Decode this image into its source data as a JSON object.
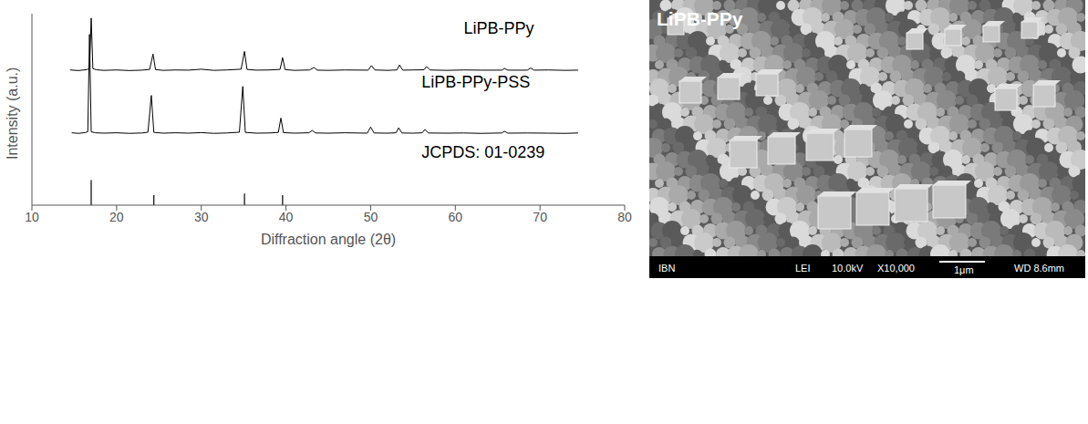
{
  "chart_data": {
    "type": "line",
    "x_label": "Diffraction angle (2θ)",
    "y_label": "Intensity (a.u.)",
    "xlim": [
      10,
      80
    ],
    "xticks": [
      10,
      20,
      30,
      40,
      50,
      60,
      70,
      80
    ],
    "ylim": [
      0,
      100
    ],
    "yticks": [],
    "tick_labels": "x",
    "grid": false,
    "series": [
      {
        "name": "LiPB-PPy",
        "color": "#000000",
        "type": "line",
        "x": [
          14.5,
          15.5,
          16.5,
          16.8,
          17.0,
          17.2,
          17.6,
          18.5,
          20,
          21.5,
          23,
          23.9,
          24.3,
          24.6,
          25.5,
          27,
          28.5,
          30,
          31.5,
          33,
          34.7,
          35.1,
          35.4,
          36.5,
          38,
          39.3,
          39.6,
          39.9,
          41,
          42.8,
          43.3,
          43.7,
          45,
          47,
          49.7,
          50.1,
          50.5,
          52,
          53.1,
          53.4,
          53.8,
          55,
          56.3,
          56.6,
          57,
          59,
          61,
          63,
          65.5,
          65.8,
          66.2,
          68.5,
          68.9,
          69.3,
          71,
          73,
          74.5
        ],
        "values": [
          70.6,
          70.3,
          70.8,
          71.5,
          97.7,
          71.3,
          70.7,
          70.4,
          70.6,
          70.3,
          70.5,
          70.9,
          78.9,
          70.8,
          70.4,
          70.6,
          70.5,
          71.0,
          70.4,
          70.6,
          71.0,
          80.3,
          70.9,
          70.5,
          70.6,
          70.9,
          77.0,
          70.8,
          70.4,
          70.6,
          71.9,
          70.5,
          70.4,
          70.6,
          70.5,
          72.9,
          70.6,
          70.4,
          70.6,
          73.2,
          70.5,
          70.6,
          70.7,
          72.4,
          70.6,
          70.4,
          70.6,
          70.5,
          70.5,
          71.4,
          70.5,
          70.5,
          71.6,
          70.5,
          70.6,
          70.4,
          70.5
        ]
      },
      {
        "name": "LiPB-PPy-PSS",
        "color": "#000000",
        "type": "line",
        "x": [
          14.7,
          15.5,
          16.3,
          16.6,
          16.8,
          17.0,
          17.5,
          18.5,
          20,
          21.5,
          23,
          23.7,
          24.1,
          24.4,
          25.5,
          27,
          28.5,
          30,
          31.5,
          33,
          34.5,
          34.9,
          35.2,
          36.5,
          38,
          39.1,
          39.4,
          39.7,
          41,
          42.7,
          43.1,
          43.5,
          45,
          47,
          49.6,
          50.0,
          50.4,
          52,
          53.0,
          53.3,
          53.7,
          55,
          56.1,
          56.4,
          56.8,
          59,
          61,
          63,
          65.5,
          65.8,
          66.2,
          68.5,
          71,
          73,
          74.5
        ],
        "values": [
          37.8,
          37.5,
          37.9,
          38.4,
          89.2,
          38.3,
          37.8,
          37.6,
          37.8,
          37.5,
          37.7,
          38.1,
          57.3,
          38.0,
          37.6,
          37.8,
          37.6,
          37.9,
          37.5,
          37.7,
          38.1,
          62.0,
          38.0,
          37.6,
          37.7,
          38.0,
          45.5,
          37.9,
          37.6,
          37.8,
          39.0,
          37.7,
          37.6,
          37.8,
          37.6,
          40.8,
          37.7,
          37.6,
          37.8,
          40.4,
          37.7,
          37.6,
          37.8,
          39.5,
          37.7,
          37.6,
          37.7,
          37.5,
          37.7,
          38.6,
          37.6,
          37.7,
          37.6,
          37.5,
          37.7
        ]
      },
      {
        "name": "JCPDS: 01-0239",
        "color": "#000000",
        "type": "stick",
        "x": [
          17.0,
          24.4,
          35.1,
          39.6
        ],
        "values": [
          13.1,
          5.2,
          6.1,
          5.2
        ]
      }
    ]
  },
  "micrograph": {
    "label": "LiPB-PPy",
    "info_bar": [
      "IBN",
      "LEI",
      "10.0kV",
      "X10,000",
      "1μm",
      "WD 8.6mm"
    ]
  }
}
